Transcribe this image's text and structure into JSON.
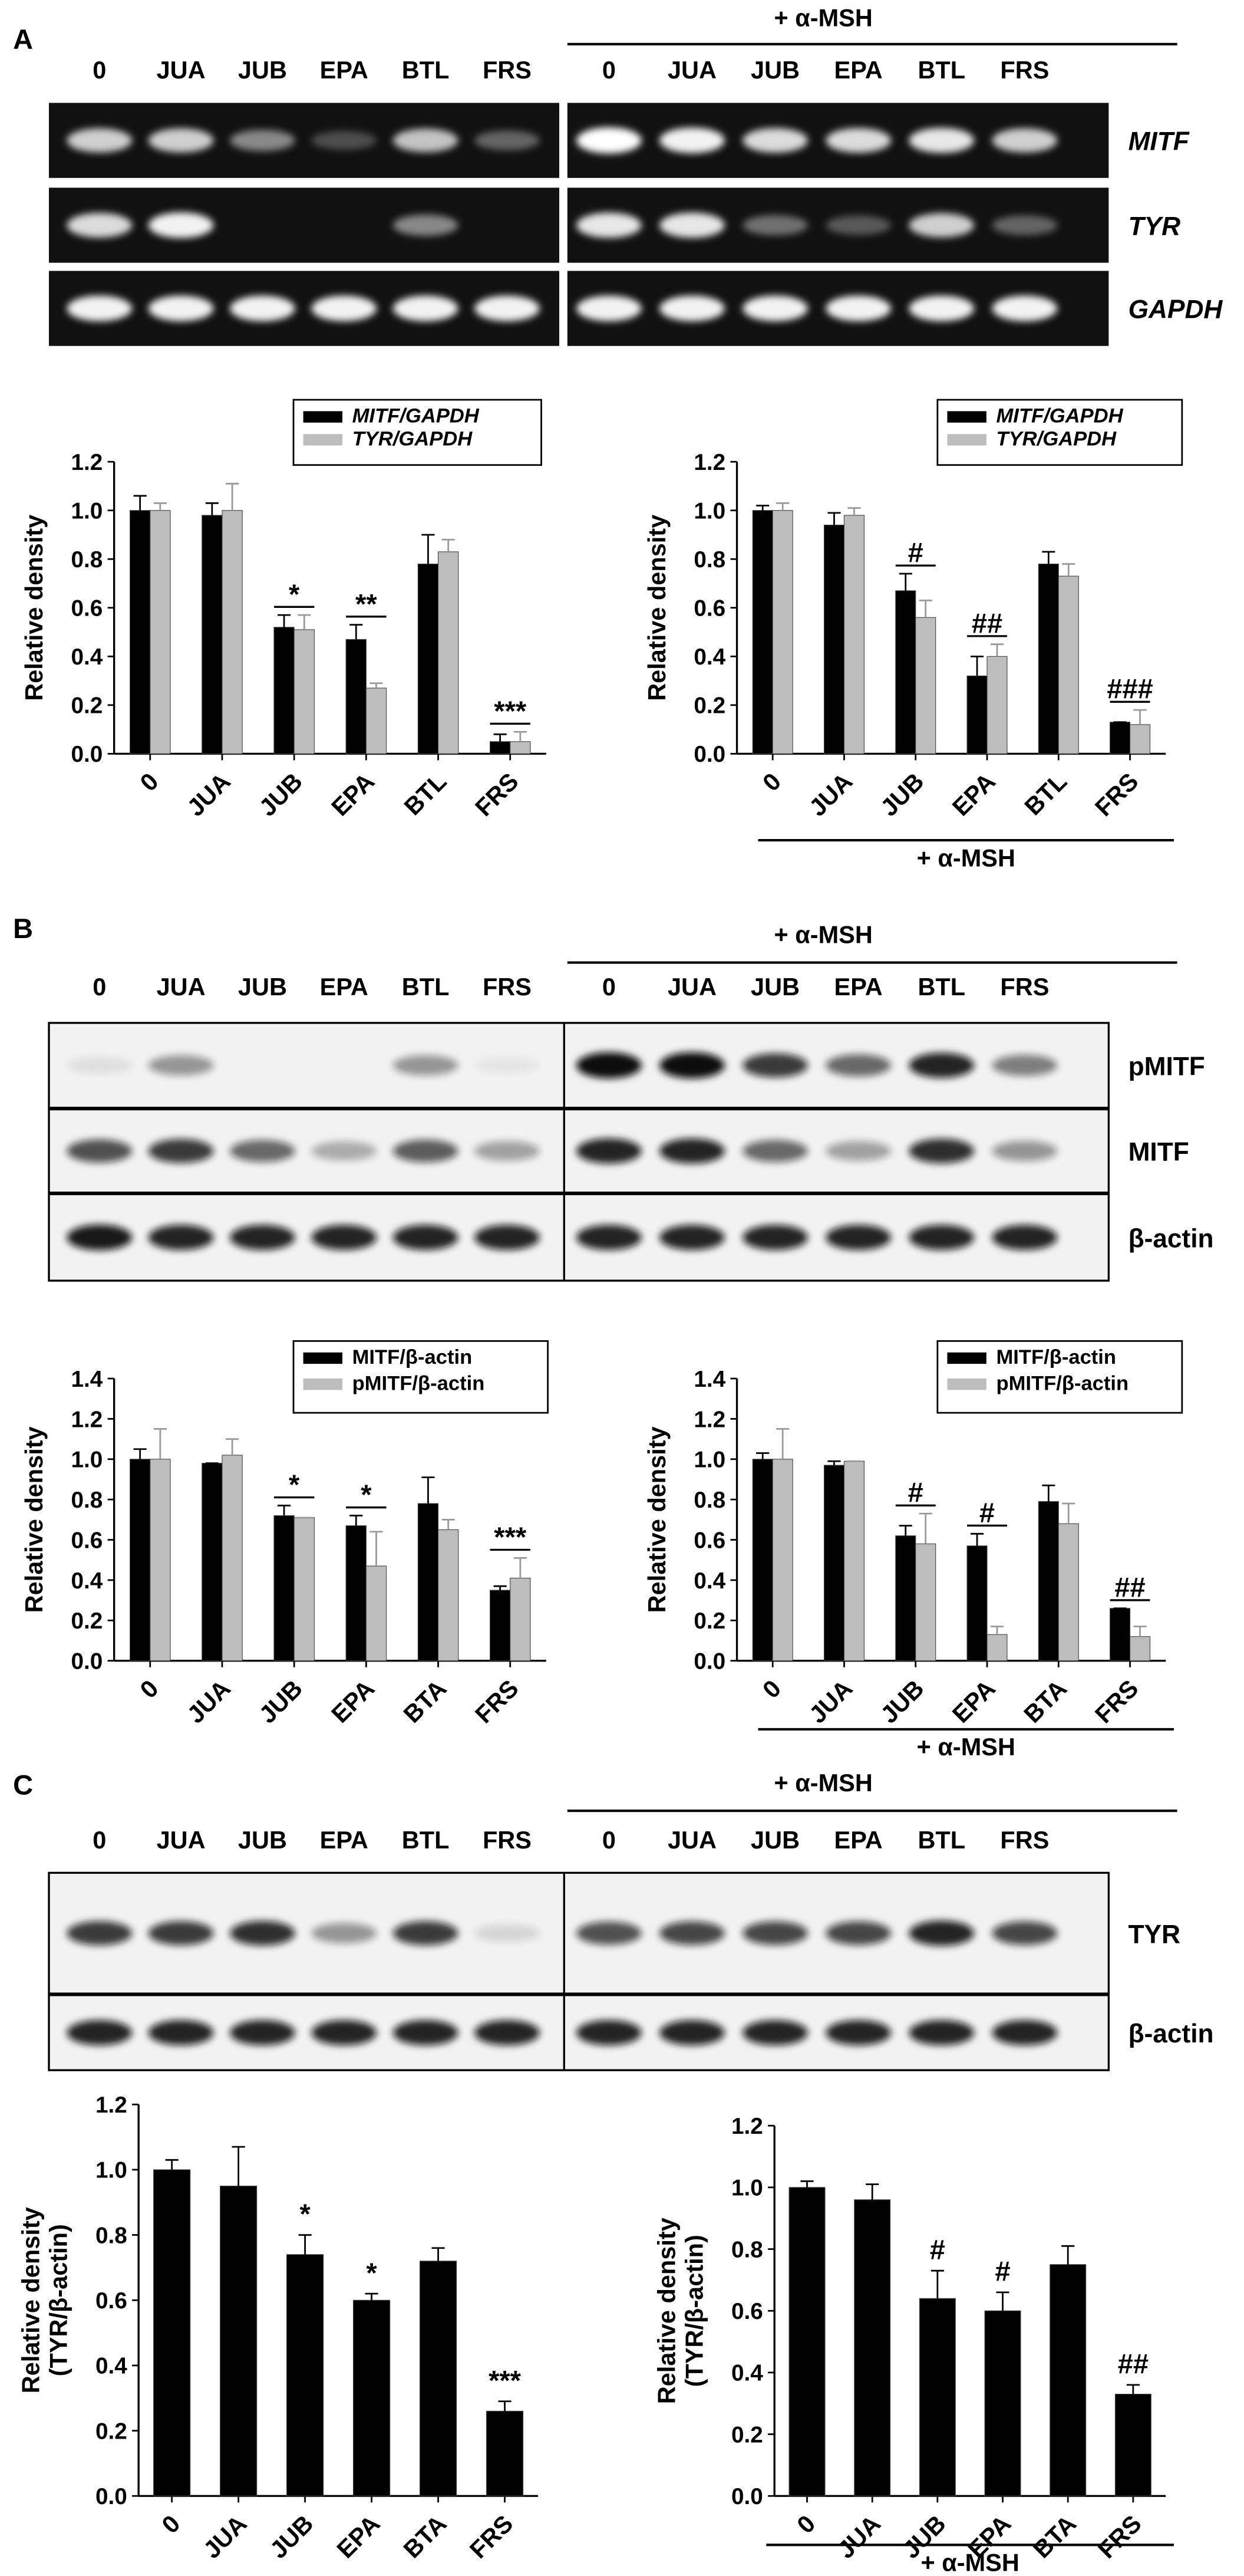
{
  "panels": [
    {
      "label": "A",
      "treatment": "+ α-MSH",
      "lanes": [
        "0",
        "JUA",
        "JUB",
        "EPA",
        "BTL",
        "FRS",
        "0",
        "JUA",
        "JUB",
        "EPA",
        "BTL",
        "FRS"
      ],
      "rows": [
        "MITF",
        "TYR",
        "GAPDH"
      ],
      "rows_italic": true
    },
    {
      "label": "B",
      "treatment": "+ α-MSH",
      "lanes": [
        "0",
        "JUA",
        "JUB",
        "EPA",
        "BTL",
        "FRS",
        "0",
        "JUA",
        "JUB",
        "EPA",
        "BTL",
        "FRS"
      ],
      "rows": [
        "pMITF",
        "MITF",
        "β-actin"
      ],
      "rows_italic": false
    },
    {
      "label": "C",
      "treatment": "+ α-MSH",
      "lanes": [
        "0",
        "JUA",
        "JUB",
        "EPA",
        "BTL",
        "FRS",
        "0",
        "JUA",
        "JUB",
        "EPA",
        "BTL",
        "FRS"
      ],
      "rows": [
        "TYR",
        "β-actin"
      ],
      "rows_italic": false
    }
  ],
  "chart_data": [
    {
      "type": "bar",
      "ylabel": [
        "Relative density"
      ],
      "categories": [
        "0",
        "JUA",
        "JUB",
        "EPA",
        "BTL",
        "FRS"
      ],
      "series": [
        {
          "name": "MITF/GAPDH",
          "color": "#000000",
          "values": [
            1.0,
            0.98,
            0.52,
            0.47,
            0.78,
            0.05
          ],
          "errors": [
            0.06,
            0.05,
            0.05,
            0.06,
            0.12,
            0.03
          ],
          "significance": [
            null,
            null,
            "*",
            "**",
            null,
            "***"
          ]
        },
        {
          "name": "TYR/GAPDH",
          "color": "#bdbdbd",
          "values": [
            1.0,
            1.0,
            0.51,
            0.27,
            0.83,
            0.05
          ],
          "errors": [
            0.03,
            0.11,
            0.06,
            0.02,
            0.05,
            0.04
          ]
        }
      ],
      "ylim": [
        0,
        1.2
      ],
      "yticks": [
        {
          "value": 0,
          "label": "0.0"
        },
        0.2,
        0.4,
        0.6,
        0.8,
        {
          "value": 1,
          "label": "1.0"
        },
        1.2
      ],
      "legend": "upper right",
      "legend_italic": true
    },
    {
      "type": "bar",
      "ylabel": [
        "Relative density"
      ],
      "categories": [
        "0",
        "JUA",
        "JUB",
        "EPA",
        "BTL",
        "FRS"
      ],
      "x_group_label": "+ α-MSH",
      "series": [
        {
          "name": "MITF/GAPDH",
          "color": "#000000",
          "values": [
            1.0,
            0.94,
            0.67,
            0.32,
            0.78,
            0.13
          ],
          "errors": [
            0.02,
            0.05,
            0.07,
            0.08,
            0.05,
            0.0
          ],
          "significance": [
            null,
            null,
            "#",
            "##",
            null,
            "###"
          ]
        },
        {
          "name": "TYR/GAPDH",
          "color": "#bdbdbd",
          "values": [
            1.0,
            0.98,
            0.56,
            0.4,
            0.73,
            0.12
          ],
          "errors": [
            0.03,
            0.03,
            0.07,
            0.05,
            0.05,
            0.06
          ]
        }
      ],
      "ylim": [
        0,
        1.2
      ],
      "yticks": [
        {
          "value": 0,
          "label": "0.0"
        },
        0.2,
        0.4,
        0.6,
        0.8,
        {
          "value": 1,
          "label": "1.0"
        },
        1.2
      ],
      "legend": "upper right",
      "legend_italic": true
    },
    {
      "type": "bar",
      "ylabel": [
        "Relative density"
      ],
      "categories": [
        "0",
        "JUA",
        "JUB",
        "EPA",
        "BTA",
        "FRS"
      ],
      "series": [
        {
          "name": "MITF/β-actin",
          "color": "#000000",
          "values": [
            1.0,
            0.98,
            0.72,
            0.67,
            0.78,
            0.35
          ],
          "errors": [
            0.05,
            0.0,
            0.05,
            0.05,
            0.13,
            0.02
          ],
          "significance": [
            null,
            null,
            "*",
            "*",
            null,
            "***"
          ]
        },
        {
          "name": "pMITF/β-actin",
          "color": "#bdbdbd",
          "values": [
            1.0,
            1.02,
            0.71,
            0.47,
            0.65,
            0.41
          ],
          "errors": [
            0.15,
            0.08,
            0.0,
            0.17,
            0.05,
            0.1
          ]
        }
      ],
      "ylim": [
        0,
        1.4
      ],
      "yticks": [
        {
          "value": 0,
          "label": "0.0"
        },
        0.2,
        0.4,
        0.6,
        0.8,
        {
          "value": 1,
          "label": "1.0"
        },
        1.2,
        1.4
      ],
      "legend": "upper right",
      "legend_italic": false
    },
    {
      "type": "bar",
      "ylabel": [
        "Relative density"
      ],
      "categories": [
        "0",
        "JUA",
        "JUB",
        "EPA",
        "BTA",
        "FRS"
      ],
      "x_group_label": "+ α-MSH",
      "series": [
        {
          "name": "MITF/β-actin",
          "color": "#000000",
          "values": [
            1.0,
            0.97,
            0.62,
            0.57,
            0.79,
            0.26
          ],
          "errors": [
            0.03,
            0.02,
            0.05,
            0.06,
            0.08,
            0.0
          ],
          "significance": [
            null,
            null,
            "#",
            "#",
            null,
            "##"
          ]
        },
        {
          "name": "pMITF/β-actin",
          "color": "#bdbdbd",
          "values": [
            1.0,
            0.99,
            0.58,
            0.13,
            0.68,
            0.12
          ],
          "errors": [
            0.15,
            0.0,
            0.15,
            0.04,
            0.1,
            0.05
          ]
        }
      ],
      "ylim": [
        0,
        1.4
      ],
      "yticks": [
        {
          "value": 0,
          "label": "0.0"
        },
        0.2,
        0.4,
        0.6,
        0.8,
        {
          "value": 1,
          "label": "1.0"
        },
        1.2,
        1.4
      ],
      "legend": "upper right",
      "legend_italic": false
    },
    {
      "type": "bar",
      "ylabel": [
        "Relative density",
        "(TYR/β-actin)"
      ],
      "categories": [
        "0",
        "JUA",
        "JUB",
        "EPA",
        "BTA",
        "FRS"
      ],
      "series": [
        {
          "name": "TYR/β-actin",
          "color": "#000000",
          "values": [
            1.0,
            0.95,
            0.74,
            0.6,
            0.72,
            0.26
          ],
          "errors": [
            0.03,
            0.12,
            0.06,
            0.02,
            0.04,
            0.03
          ],
          "significance": [
            null,
            null,
            "*",
            "*",
            null,
            "***"
          ]
        }
      ],
      "ylim": [
        0,
        1.2
      ],
      "yticks": [
        {
          "value": 0,
          "label": "0.0"
        },
        0.2,
        0.4,
        0.6,
        0.8,
        {
          "value": 1,
          "label": "1.0"
        },
        1.2
      ],
      "legend": "none"
    },
    {
      "type": "bar",
      "ylabel": [
        "Relative density",
        "(TYR/β-actin)"
      ],
      "categories": [
        "0",
        "JUA",
        "JUB",
        "EPA",
        "BTA",
        "FRS"
      ],
      "x_group_label": "+ α-MSH",
      "series": [
        {
          "name": "TYR/β-actin",
          "color": "#000000",
          "values": [
            1.0,
            0.96,
            0.64,
            0.6,
            0.75,
            0.33
          ],
          "errors": [
            0.02,
            0.05,
            0.09,
            0.06,
            0.06,
            0.03
          ],
          "significance": [
            null,
            null,
            "#",
            "#",
            null,
            "##"
          ]
        }
      ],
      "ylim": [
        0,
        1.2
      ],
      "yticks": [
        {
          "value": 0,
          "label": "0.0"
        },
        0.2,
        0.4,
        0.6,
        0.8,
        {
          "value": 1,
          "label": "1.0"
        },
        1.2
      ],
      "legend": "none"
    }
  ]
}
